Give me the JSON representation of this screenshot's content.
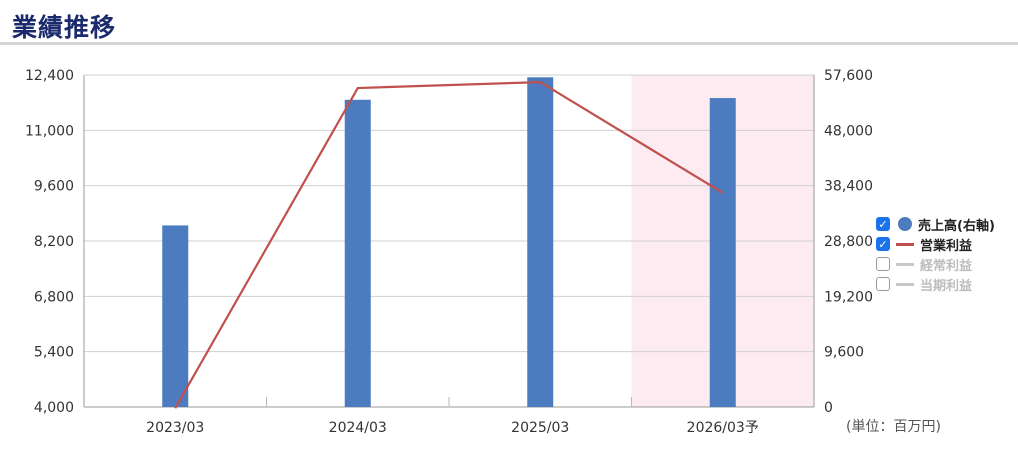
{
  "header": {
    "title": "業績推移"
  },
  "colors": {
    "bar": "#4c7cbf",
    "line": "#c0504d",
    "forecast_bg": "#fcebf0",
    "grid": "#d0d0d0",
    "disabled": "#c8c8c8",
    "checkbox": "#1a73e8"
  },
  "chart_data": {
    "type": "bar",
    "categories": [
      "2023/03",
      "2024/03",
      "2025/03",
      "2026/03予"
    ],
    "forecast_category": "2026/03予",
    "series": [
      {
        "name": "売上高(右軸)",
        "type": "bar",
        "axis": "right",
        "values": [
          31500,
          53300,
          57200,
          53600
        ]
      },
      {
        "name": "営業利益",
        "type": "line",
        "axis": "left",
        "values": [
          3970,
          12070,
          12220,
          9420
        ]
      }
    ],
    "left_axis": {
      "min": 4000,
      "max": 12400,
      "ticks": [
        "12,400",
        "11,000",
        "9,600",
        "8,200",
        "6,800",
        "5,400",
        "4,000"
      ]
    },
    "right_axis": {
      "min": 0,
      "max": 57600,
      "ticks": [
        "57,600",
        "48,000",
        "38,400",
        "28,800",
        "19,200",
        "9,600",
        "0"
      ]
    },
    "grid": true,
    "legend_position": "right"
  },
  "legend": [
    {
      "label": "売上高(右軸)",
      "checked": true,
      "symbol": "dot",
      "color": "#4c7cbf"
    },
    {
      "label": "営業利益",
      "checked": true,
      "symbol": "line",
      "color": "#c0504d"
    },
    {
      "label": "経常利益",
      "checked": false,
      "symbol": "line",
      "color": "#c8c8c8"
    },
    {
      "label": "当期利益",
      "checked": false,
      "symbol": "line",
      "color": "#c8c8c8"
    }
  ],
  "unit_note": "(単位：百万円)"
}
